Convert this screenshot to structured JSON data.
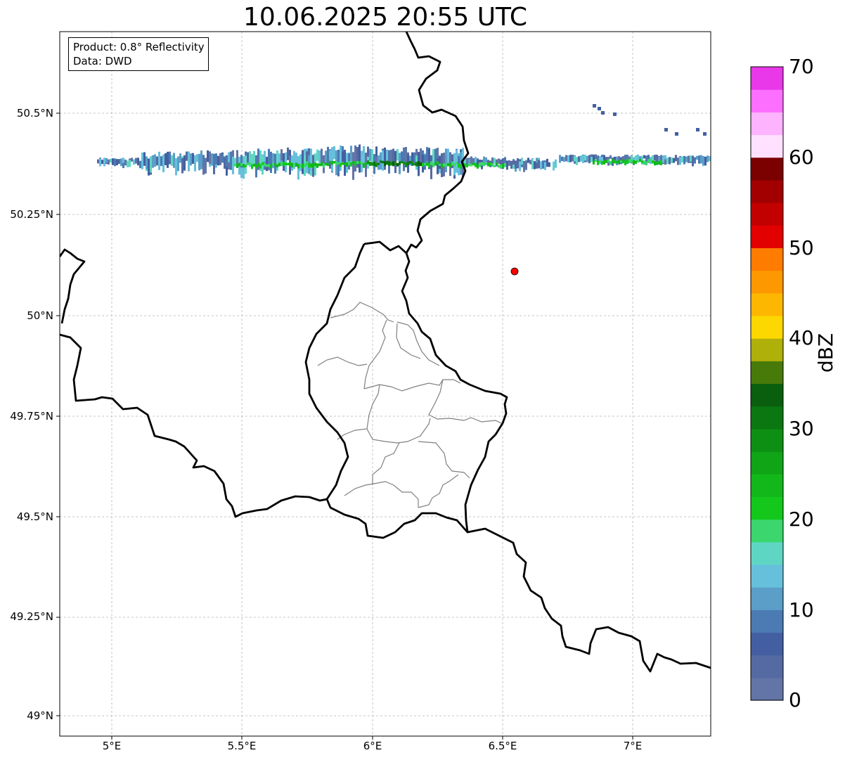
{
  "title": "10.06.2025 20:55 UTC",
  "info": {
    "product": "Product: 0.8° Reflectivity",
    "data_source": "Data: DWD"
  },
  "map": {
    "lon_range": [
      4.8,
      7.3
    ],
    "lat_range": [
      48.95,
      50.7
    ],
    "lon_ticks": [
      "5°E",
      "5.5°E",
      "6°E",
      "6.5°E",
      "7°E"
    ],
    "lat_ticks": [
      "49°N",
      "49.25°N",
      "49.5°N",
      "49.75°N",
      "50°N",
      "50.25°N",
      "50.5°N"
    ],
    "marker": {
      "lon": 6.545,
      "lat": 50.105,
      "color": "#ff0000"
    }
  },
  "colorbar": {
    "label": "dBZ",
    "ticks": [
      "0",
      "10",
      "20",
      "30",
      "40",
      "50",
      "60",
      "70"
    ],
    "colors": [
      "#6374a6",
      "#556aa2",
      "#445fa1",
      "#4b7bb2",
      "#5b9ec8",
      "#66c0dc",
      "#5fd6c4",
      "#3bd66e",
      "#13c81b",
      "#12b81a",
      "#10a417",
      "#0d8f14",
      "#0b7711",
      "#095f0d",
      "#487a0a",
      "#afb00a",
      "#fdd700",
      "#feb700",
      "#fd9800",
      "#fe7c00",
      "#e20000",
      "#c30000",
      "#a20000",
      "#7b0000",
      "#ffe1ff",
      "#feb3ff",
      "#fd6fff",
      "#e838e8"
    ]
  }
}
